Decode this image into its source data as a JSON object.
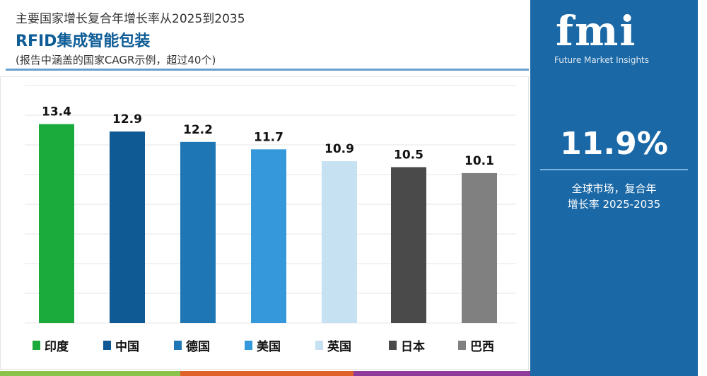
{
  "header": {
    "supertitle": "主要国家增长复合年增长率从2025到2035",
    "title": "RFID集成智能包装",
    "subtitle": "(报告中涵盖的国家CAGR示例，超过40个)"
  },
  "panel": {
    "logo_text": "fmi",
    "logo_subtitle": "Future Market Insights",
    "value": "11.9%",
    "label_line1": "全球市场，复合年",
    "label_line2": "增长率 2025-2035",
    "bg_color": "#1a68a6"
  },
  "chart_data": {
    "type": "bar",
    "categories": [
      "印度",
      "中国",
      "德国",
      "美国",
      "英国",
      "日本",
      "巴西"
    ],
    "values": [
      13.4,
      12.9,
      12.2,
      11.7,
      10.9,
      10.5,
      10.1
    ],
    "value_labels": [
      "13.4",
      "12.9",
      "12.2",
      "11.7",
      "10.9",
      "10.5",
      "10.1"
    ],
    "colors": [
      "#1aab3c",
      "#0f5a94",
      "#1e77b4",
      "#3498db",
      "#c5e1f2",
      "#4a4a4a",
      "#808080"
    ],
    "ylim": [
      0,
      16
    ],
    "grid": true,
    "legend": "bottom",
    "title": "",
    "xlabel": "",
    "ylabel": ""
  },
  "stripes": [
    "#8bc34a",
    "#e0622a",
    "#8e3b9a"
  ]
}
